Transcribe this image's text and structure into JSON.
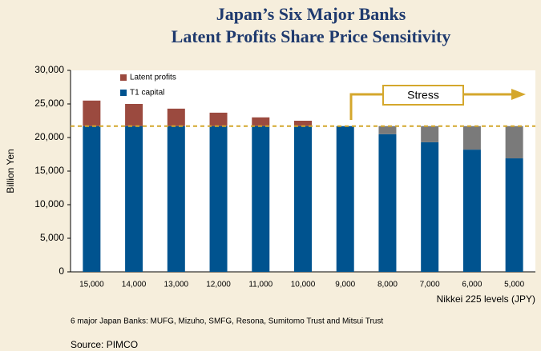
{
  "chart_data": {
    "type": "stacked_bar",
    "title": [
      "Japan’s Six Major Banks",
      "Latent Profits Share Price Sensitivity"
    ],
    "y_label": "Billion Yen",
    "x_label": "Nikkei 225 levels (JPY)",
    "categories": [
      "15,000",
      "14,000",
      "13,000",
      "12,000",
      "11,000",
      "10,000",
      "9,000",
      "8,000",
      "7,000",
      "6,000",
      "5,000"
    ],
    "series": [
      {
        "name": "T1 capital",
        "color": "#00538f",
        "values": [
          21700,
          21700,
          21700,
          21700,
          21700,
          21700,
          21700,
          20500,
          19300,
          18200,
          16900
        ]
      },
      {
        "color": "#7a7a7a",
        "values": [
          0,
          0,
          0,
          0,
          0,
          0,
          0,
          1200,
          2400,
          3500,
          4800
        ]
      },
      {
        "name": "Latent profits",
        "color": "#9b4a3f",
        "values": [
          3800,
          3300,
          2600,
          2000,
          1300,
          800,
          0,
          0,
          0,
          0,
          0
        ]
      }
    ],
    "reference_line": 21700,
    "annotation": "Stress",
    "ylim": [
      0,
      30000
    ],
    "yticks": [
      0,
      {
        "value": 5000,
        "label": "5,000"
      },
      {
        "value": 10000,
        "label": "10,000"
      },
      {
        "value": 15000,
        "label": "15,000"
      },
      {
        "value": 20000,
        "label": "20,000"
      },
      {
        "value": 25000,
        "label": "25,000"
      },
      {
        "value": 30000,
        "label": "30,000"
      }
    ],
    "note": "6 major Japan Banks: MUFG, Mizuho, SMFG, Resona, Sumitomo Trust and Mitsui Trust",
    "source": "Source: PIMCO"
  }
}
